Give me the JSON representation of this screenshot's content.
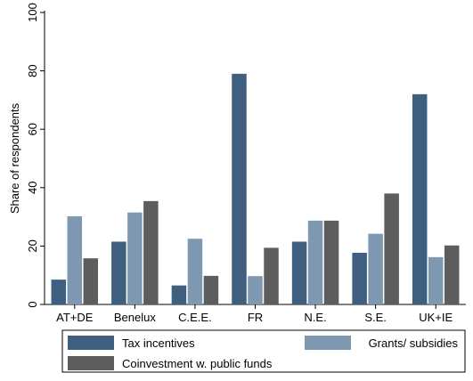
{
  "chart_data": {
    "type": "bar",
    "title": "",
    "xlabel": "",
    "ylabel": "Share of respondents",
    "ylim": [
      0,
      100
    ],
    "yticks": [
      0,
      20,
      40,
      60,
      80,
      100
    ],
    "grid": false,
    "legend_position": "bottom",
    "categories": [
      "AT+DE",
      "Benelux",
      "C.E.E.",
      "FR",
      "N.E.",
      "S.E.",
      "UK+IE"
    ],
    "series": [
      {
        "name": "Tax incentives",
        "color": "#3e5f7d",
        "values": [
          8.5,
          21.5,
          6.5,
          79,
          21.5,
          17.7,
          72
        ]
      },
      {
        "name": "Grants/ subsidies",
        "color": "#7f98b1",
        "values": [
          30.2,
          31.5,
          22.5,
          9.7,
          28.7,
          24.2,
          16.2
        ]
      },
      {
        "name": "Coinvestment w. public funds",
        "color": "#5d5d5d",
        "values": [
          15.8,
          35.4,
          9.8,
          19.4,
          28.7,
          38,
          20.2
        ]
      }
    ]
  }
}
